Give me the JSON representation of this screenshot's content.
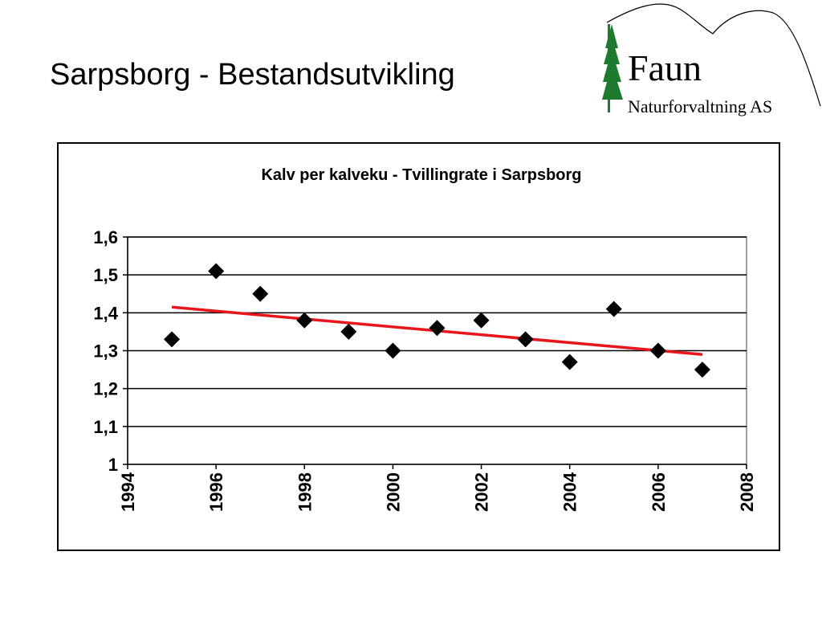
{
  "slide": {
    "title": "Sarpsborg - Bestandsutvikling"
  },
  "logo": {
    "name": "Faun",
    "subtitle": "Naturforvaltning AS",
    "colors": {
      "tree": "#1e7a2e",
      "text": "#000000",
      "line": "#000000"
    }
  },
  "chart_data": {
    "type": "scatter",
    "title": "Kalv per kalveku - Tvillingrate i Sarpsborg",
    "xlabel": "",
    "ylabel": "",
    "xlim": [
      1994,
      2008
    ],
    "ylim": [
      1,
      1.6
    ],
    "xticks": [
      1994,
      1996,
      1998,
      2000,
      2002,
      2004,
      2006,
      2008
    ],
    "xtick_labels": [
      "1994",
      "1996",
      "1998",
      "2000",
      "2002",
      "2004",
      "2006",
      "2008"
    ],
    "yticks": [
      1,
      1.1,
      1.2,
      1.3,
      1.4,
      1.5,
      1.6
    ],
    "ytick_labels": [
      "1",
      "1,1",
      "1,2",
      "1,3",
      "1,4",
      "1,5",
      "1,6"
    ],
    "grid": "horizontal",
    "legend": "none",
    "series": [
      {
        "marker": "diamond",
        "color": "#000000",
        "x": [
          1995,
          1996,
          1997,
          1998,
          1999,
          2000,
          2001,
          2002,
          2003,
          2004,
          2005,
          2006,
          2007
        ],
        "y": [
          1.33,
          1.51,
          1.45,
          1.38,
          1.35,
          1.3,
          1.36,
          1.38,
          1.33,
          1.27,
          1.41,
          1.3,
          1.25
        ]
      }
    ],
    "trendline": {
      "type": "linear",
      "color": "#e8151b",
      "x": [
        1995,
        2007
      ],
      "y": [
        1.415,
        1.29
      ]
    }
  }
}
